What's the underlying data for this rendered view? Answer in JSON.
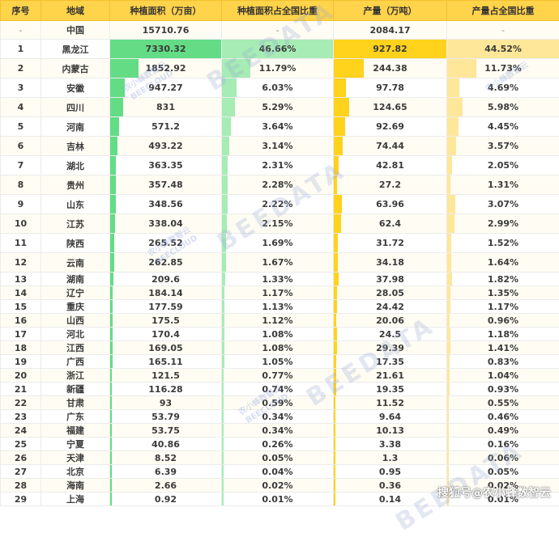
{
  "table": {
    "headers": [
      "序号",
      "地域",
      "种植面积（万亩）",
      "种植面积占全国比重",
      "产量（万吨）",
      "产量占全国比重"
    ],
    "total_row": {
      "idx": "-",
      "region": "中国",
      "area": "15710.76",
      "area_share": "-",
      "production": "2084.17",
      "prod_share": "-"
    },
    "rows": [
      {
        "idx": "1",
        "region": "黑龙江",
        "area": "7330.32",
        "area_share": "46.66%",
        "production": "927.82",
        "prod_share": "44.52%"
      },
      {
        "idx": "2",
        "region": "内蒙古",
        "area": "1852.92",
        "area_share": "11.79%",
        "production": "244.38",
        "prod_share": "11.73%"
      },
      {
        "idx": "3",
        "region": "安徽",
        "area": "947.27",
        "area_share": "6.03%",
        "production": "97.78",
        "prod_share": "4.69%"
      },
      {
        "idx": "4",
        "region": "四川",
        "area": "831",
        "area_share": "5.29%",
        "production": "124.65",
        "prod_share": "5.98%"
      },
      {
        "idx": "5",
        "region": "河南",
        "area": "571.2",
        "area_share": "3.64%",
        "production": "92.69",
        "prod_share": "4.45%"
      },
      {
        "idx": "6",
        "region": "吉林",
        "area": "493.22",
        "area_share": "3.14%",
        "production": "74.44",
        "prod_share": "3.57%"
      },
      {
        "idx": "7",
        "region": "湖北",
        "area": "363.35",
        "area_share": "2.31%",
        "production": "42.81",
        "prod_share": "2.05%"
      },
      {
        "idx": "8",
        "region": "贵州",
        "area": "357.48",
        "area_share": "2.28%",
        "production": "27.2",
        "prod_share": "1.31%"
      },
      {
        "idx": "9",
        "region": "山东",
        "area": "348.56",
        "area_share": "2.22%",
        "production": "63.96",
        "prod_share": "3.07%"
      },
      {
        "idx": "10",
        "region": "江苏",
        "area": "338.04",
        "area_share": "2.15%",
        "production": "62.4",
        "prod_share": "2.99%"
      },
      {
        "idx": "11",
        "region": "陕西",
        "area": "265.52",
        "area_share": "1.69%",
        "production": "31.72",
        "prod_share": "1.52%"
      },
      {
        "idx": "12",
        "region": "云南",
        "area": "262.85",
        "area_share": "1.67%",
        "production": "34.18",
        "prod_share": "1.64%"
      },
      {
        "idx": "13",
        "region": "湖南",
        "area": "209.6",
        "area_share": "1.33%",
        "production": "37.98",
        "prod_share": "1.82%"
      },
      {
        "idx": "14",
        "region": "辽宁",
        "area": "184.14",
        "area_share": "1.17%",
        "production": "28.05",
        "prod_share": "1.35%"
      },
      {
        "idx": "15",
        "region": "重庆",
        "area": "177.59",
        "area_share": "1.13%",
        "production": "24.42",
        "prod_share": "1.17%"
      },
      {
        "idx": "16",
        "region": "山西",
        "area": "175.5",
        "area_share": "1.12%",
        "production": "20.06",
        "prod_share": "0.96%"
      },
      {
        "idx": "17",
        "region": "河北",
        "area": "170.4",
        "area_share": "1.08%",
        "production": "24.5",
        "prod_share": "1.18%"
      },
      {
        "idx": "18",
        "region": "江西",
        "area": "169.05",
        "area_share": "1.08%",
        "production": "29.39",
        "prod_share": "1.41%"
      },
      {
        "idx": "19",
        "region": "广西",
        "area": "165.11",
        "area_share": "1.05%",
        "production": "17.35",
        "prod_share": "0.83%"
      },
      {
        "idx": "20",
        "region": "浙江",
        "area": "121.5",
        "area_share": "0.77%",
        "production": "21.61",
        "prod_share": "1.04%"
      },
      {
        "idx": "21",
        "region": "新疆",
        "area": "116.28",
        "area_share": "0.74%",
        "production": "19.35",
        "prod_share": "0.93%"
      },
      {
        "idx": "22",
        "region": "甘肃",
        "area": "93",
        "area_share": "0.59%",
        "production": "11.52",
        "prod_share": "0.55%"
      },
      {
        "idx": "23",
        "region": "广东",
        "area": "53.79",
        "area_share": "0.34%",
        "production": "9.64",
        "prod_share": "0.46%"
      },
      {
        "idx": "24",
        "region": "福建",
        "area": "53.75",
        "area_share": "0.34%",
        "production": "10.13",
        "prod_share": "0.49%"
      },
      {
        "idx": "25",
        "region": "宁夏",
        "area": "40.86",
        "area_share": "0.26%",
        "production": "3.38",
        "prod_share": "0.16%"
      },
      {
        "idx": "26",
        "region": "天津",
        "area": "8.52",
        "area_share": "0.05%",
        "production": "1.3",
        "prod_share": "0.06%"
      },
      {
        "idx": "27",
        "region": "北京",
        "area": "6.39",
        "area_share": "0.04%",
        "production": "0.95",
        "prod_share": "0.05%"
      },
      {
        "idx": "28",
        "region": "海南",
        "area": "2.66",
        "area_share": "0.02%",
        "production": "0.36",
        "prod_share": "0.02%"
      },
      {
        "idx": "29",
        "region": "上海",
        "area": "0.92",
        "area_share": "0.01%",
        "production": "0.14",
        "prod_share": "0.01%"
      }
    ]
  },
  "colors": {
    "header_bg": "#ffd34a",
    "area_bar": "#63dc85",
    "area_share_bar": "#a6ecb4",
    "production_bar": "#ffd21c",
    "production_share_bar": "#ffe79a"
  },
  "watermarks": {
    "brand": "BEEDATA",
    "brand_cn": "农小蜂数智云",
    "brand_en": "BEECLOUD"
  },
  "footer": {
    "attribution": "搜狐号@农小蜂数智云"
  }
}
